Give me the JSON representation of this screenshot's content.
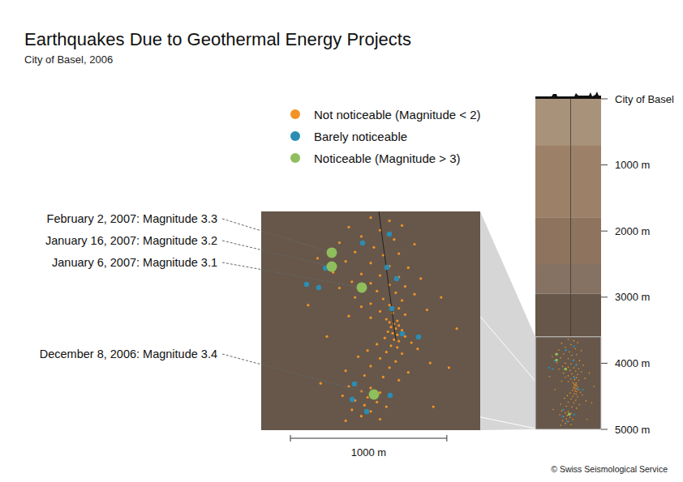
{
  "chart_data": {
    "type": "scatter",
    "title": "Earthquakes Due to Geothermal Energy Projects",
    "subtitle": "City of Basel, 2006",
    "xlim": [
      0,
      1400
    ],
    "ylim": [
      3600,
      5000
    ],
    "tick_labels": false,
    "legend": "top",
    "series": [
      {
        "name": "Not noticeable (Magnitude < 2)",
        "color": "#f39325",
        "marker": "dot",
        "x": [
          700,
          820,
          560,
          900,
          760,
          640,
          850,
          500,
          980,
          720,
          600,
          880,
          780,
          540,
          700,
          820,
          940,
          460,
          640,
          760,
          880,
          1020,
          580,
          700,
          820,
          920,
          500,
          660,
          740,
          860,
          980,
          600,
          780,
          900,
          700,
          820,
          640,
          880,
          1060,
          760,
          840,
          920,
          560,
          700,
          800,
          870,
          820,
          850,
          880,
          830,
          860,
          900,
          810,
          840,
          870,
          920,
          790,
          850,
          880,
          960,
          740,
          830,
          870,
          1000,
          680,
          800,
          900,
          620,
          760,
          860,
          1080,
          700,
          820,
          540,
          940,
          660,
          780,
          880,
          600,
          560,
          700,
          640,
          760,
          520,
          680,
          600,
          740,
          660,
          800,
          580,
          700,
          640,
          760,
          540,
          360,
          1150,
          420,
          1200,
          380,
          1100,
          300,
          1250
        ],
        "y": [
          3640,
          3660,
          3700,
          3690,
          3720,
          3760,
          3780,
          3800,
          3810,
          3830,
          3860,
          3870,
          3880,
          3920,
          3930,
          3950,
          3960,
          3990,
          4000,
          4010,
          4020,
          4030,
          4050,
          4060,
          4070,
          4080,
          4090,
          4100,
          4110,
          4120,
          4130,
          4150,
          4160,
          4170,
          4190,
          4200,
          4210,
          4220,
          4230,
          4240,
          4250,
          4260,
          4270,
          4280,
          4290,
          4300,
          4310,
          4320,
          4330,
          4340,
          4350,
          4360,
          4370,
          4380,
          4390,
          4400,
          4410,
          4420,
          4430,
          4440,
          4450,
          4460,
          4470,
          4480,
          4490,
          4500,
          4510,
          4530,
          4540,
          4560,
          4570,
          4590,
          4600,
          4620,
          4630,
          4650,
          4660,
          4680,
          4700,
          4720,
          4730,
          4750,
          4760,
          4780,
          4790,
          4810,
          4820,
          4840,
          4850,
          4870,
          4880,
          4910,
          4930,
          4940,
          3900,
          4150,
          4400,
          4600,
          4700,
          4850,
          4200,
          4350
        ]
      },
      {
        "name": "Barely noticeable",
        "color": "#2b8db3",
        "marker": "dot",
        "x": [
          648,
          819,
          410,
          290,
          368,
          804,
          866,
          835,
          902,
          1006,
          596,
          581,
          824,
          674
        ],
        "y": [
          3802,
          3745,
          3963,
          4067,
          4087,
          3958,
          4030,
          4222,
          4383,
          4404,
          4704,
          4803,
          4777,
          4881
        ]
      },
      {
        "name": "Noticeable (Magnitude > 3)",
        "color": "#8fbe5c",
        "marker": "dot",
        "x": [
          451,
          451,
          643,
          721
        ],
        "y": [
          3864,
          3953,
          4087,
          4772
        ]
      }
    ],
    "annotations": [
      {
        "text": "February 2, 2007: Magnitude 3.3",
        "x": 451,
        "y": 3864
      },
      {
        "text": "January 16, 2007: Magnitude 3.2",
        "x": 451,
        "y": 3953
      },
      {
        "text": "January 6, 2007: Magnitude 3.1",
        "x": 643,
        "y": 4087
      },
      {
        "text": "December 8, 2006: Magnitude 3.4",
        "x": 721,
        "y": 4772
      }
    ],
    "scale_bar": {
      "length": 1000,
      "label": "1000 m"
    },
    "well": {
      "x": [
        752,
        752,
        861
      ],
      "depth": [
        0,
        3600,
        4424
      ]
    },
    "depth_axis": {
      "ylim": [
        0,
        5000
      ],
      "yticks": [
        {
          "value": 0,
          "label": "City of Basel"
        },
        {
          "value": 1000,
          "label": "1000 m"
        },
        {
          "value": 2000,
          "label": "2000 m"
        },
        {
          "value": 3000,
          "label": "3000 m"
        },
        {
          "value": 4000,
          "label": "4000 m"
        },
        {
          "value": 5000,
          "label": "5000 m"
        }
      ]
    },
    "layers": [
      {
        "top": 0,
        "color": "#a8927a"
      },
      {
        "top": 700,
        "color": "#9c8168"
      },
      {
        "top": 1800,
        "color": "#8e735e"
      },
      {
        "top": 2500,
        "color": "#857263"
      },
      {
        "top": 2950,
        "color": "#66574a"
      }
    ],
    "source": "© Swiss Seismological Service"
  }
}
